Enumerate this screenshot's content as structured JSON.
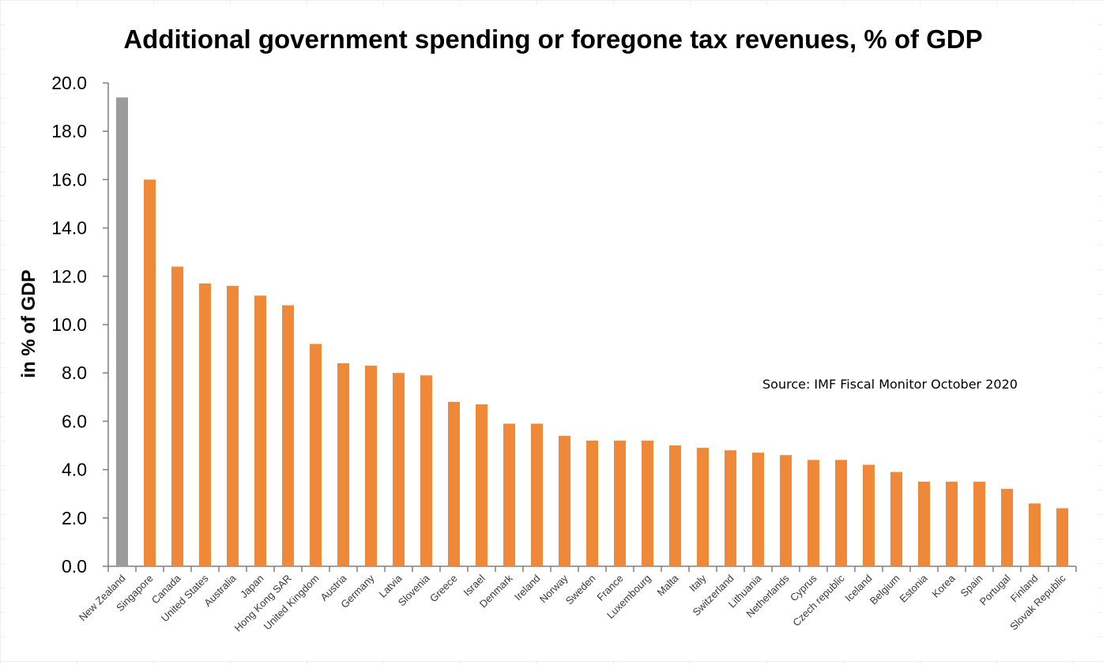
{
  "chart_data": {
    "type": "bar",
    "title": "Additional government spending or foregone tax revenues, % of GDP",
    "xlabel": "",
    "ylabel": "in % of GDP",
    "ylim": [
      0,
      20
    ],
    "yticks": [
      "0.0",
      "2.0",
      "4.0",
      "6.0",
      "8.0",
      "10.0",
      "12.0",
      "14.0",
      "16.0",
      "18.0",
      "20.0"
    ],
    "grid": false,
    "legend": "none",
    "annotation": "Source: IMF Fiscal Monitor October 2020",
    "colors": {
      "highlight": "#9b9b9b",
      "bar": "#f0883a"
    },
    "highlight_category": "New Zealand",
    "categories": [
      "New Zealand",
      "Singapore",
      "Canada",
      "United States",
      "Australia",
      "Japan",
      "Hong Kong SAR",
      "United Kingdom",
      "Austria",
      "Germany",
      "Latvia",
      "Slovenia",
      "Greece",
      "Israel",
      "Denmark",
      "Ireland",
      "Norway",
      "Sweden",
      "France",
      "Luxembourg",
      "Malta",
      "Italy",
      "Switzerland",
      "Lithuania",
      "Netherlands",
      "Cyprus",
      "Czech republic",
      "Iceland",
      "Belgium",
      "Estonia",
      "Korea",
      "Spain",
      "Portugal",
      "Finland",
      "Slovak Republic"
    ],
    "values": [
      19.4,
      16.0,
      12.4,
      11.7,
      11.6,
      11.2,
      10.8,
      9.2,
      8.4,
      8.3,
      8.0,
      7.9,
      6.8,
      6.7,
      5.9,
      5.9,
      5.4,
      5.2,
      5.2,
      5.2,
      5.0,
      4.9,
      4.8,
      4.7,
      4.6,
      4.4,
      4.4,
      4.2,
      3.9,
      3.5,
      3.5,
      3.5,
      3.2,
      2.6,
      2.4
    ]
  }
}
